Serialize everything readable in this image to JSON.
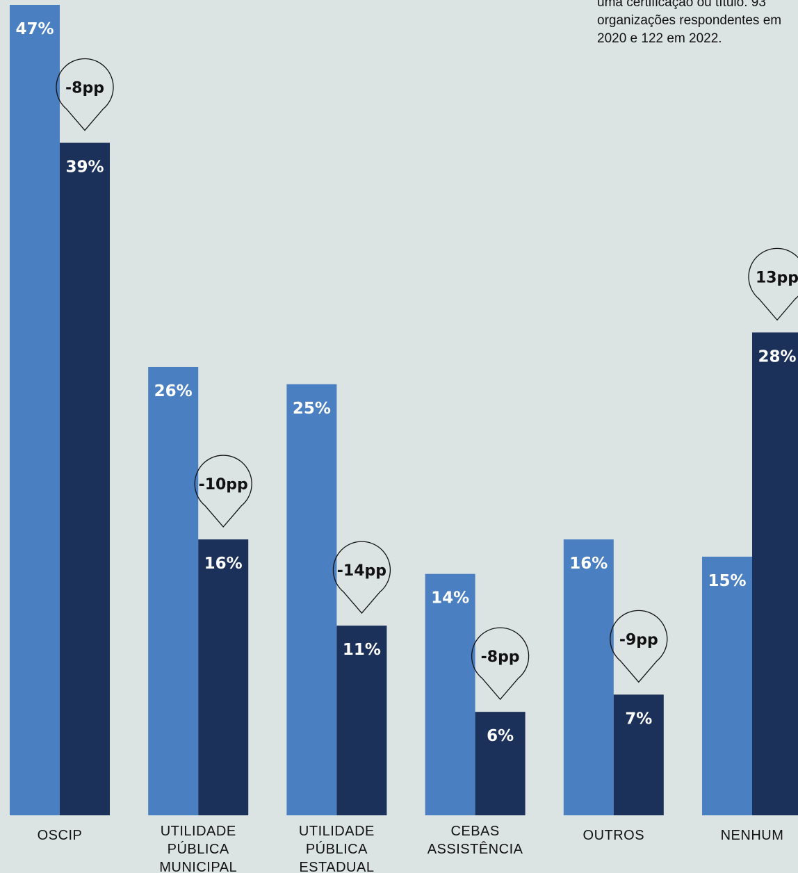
{
  "note": {
    "lines": [
      "uma certificação ou título. 93",
      "organizações respondentes em",
      "2020 e 122 em 2022."
    ]
  },
  "colors": {
    "background": "#dce3e3",
    "series_2020": "#4a7fc1",
    "series_2022": "#1b3159",
    "text": "#111111"
  },
  "chart_data": {
    "type": "bar",
    "categories": [
      [
        "OSCIP"
      ],
      [
        "UTILIDADE",
        "PÚBLICA",
        "MUNICIPAL"
      ],
      [
        "UTILIDADE",
        "PÚBLICA",
        "ESTADUAL"
      ],
      [
        "CEBAS",
        "ASSISTÊNCIA"
      ],
      [
        "OUTROS"
      ],
      [
        "NENHUM"
      ]
    ],
    "series": [
      {
        "values": [
          47,
          26,
          25,
          14,
          16,
          15
        ],
        "labels": [
          "47%",
          "26%",
          "25%",
          "14%",
          "16%",
          "15%"
        ]
      },
      {
        "values": [
          39,
          16,
          11,
          6,
          7,
          28
        ],
        "labels": [
          "39%",
          "16%",
          "11%",
          "6%",
          "7%",
          "28%"
        ]
      }
    ],
    "differences": [
      "-8pp",
      "-10pp",
      "-14pp",
      "-8pp",
      "-9pp",
      "13pp"
    ],
    "ylim": [
      0,
      47
    ],
    "grid": false,
    "legend": "none"
  }
}
